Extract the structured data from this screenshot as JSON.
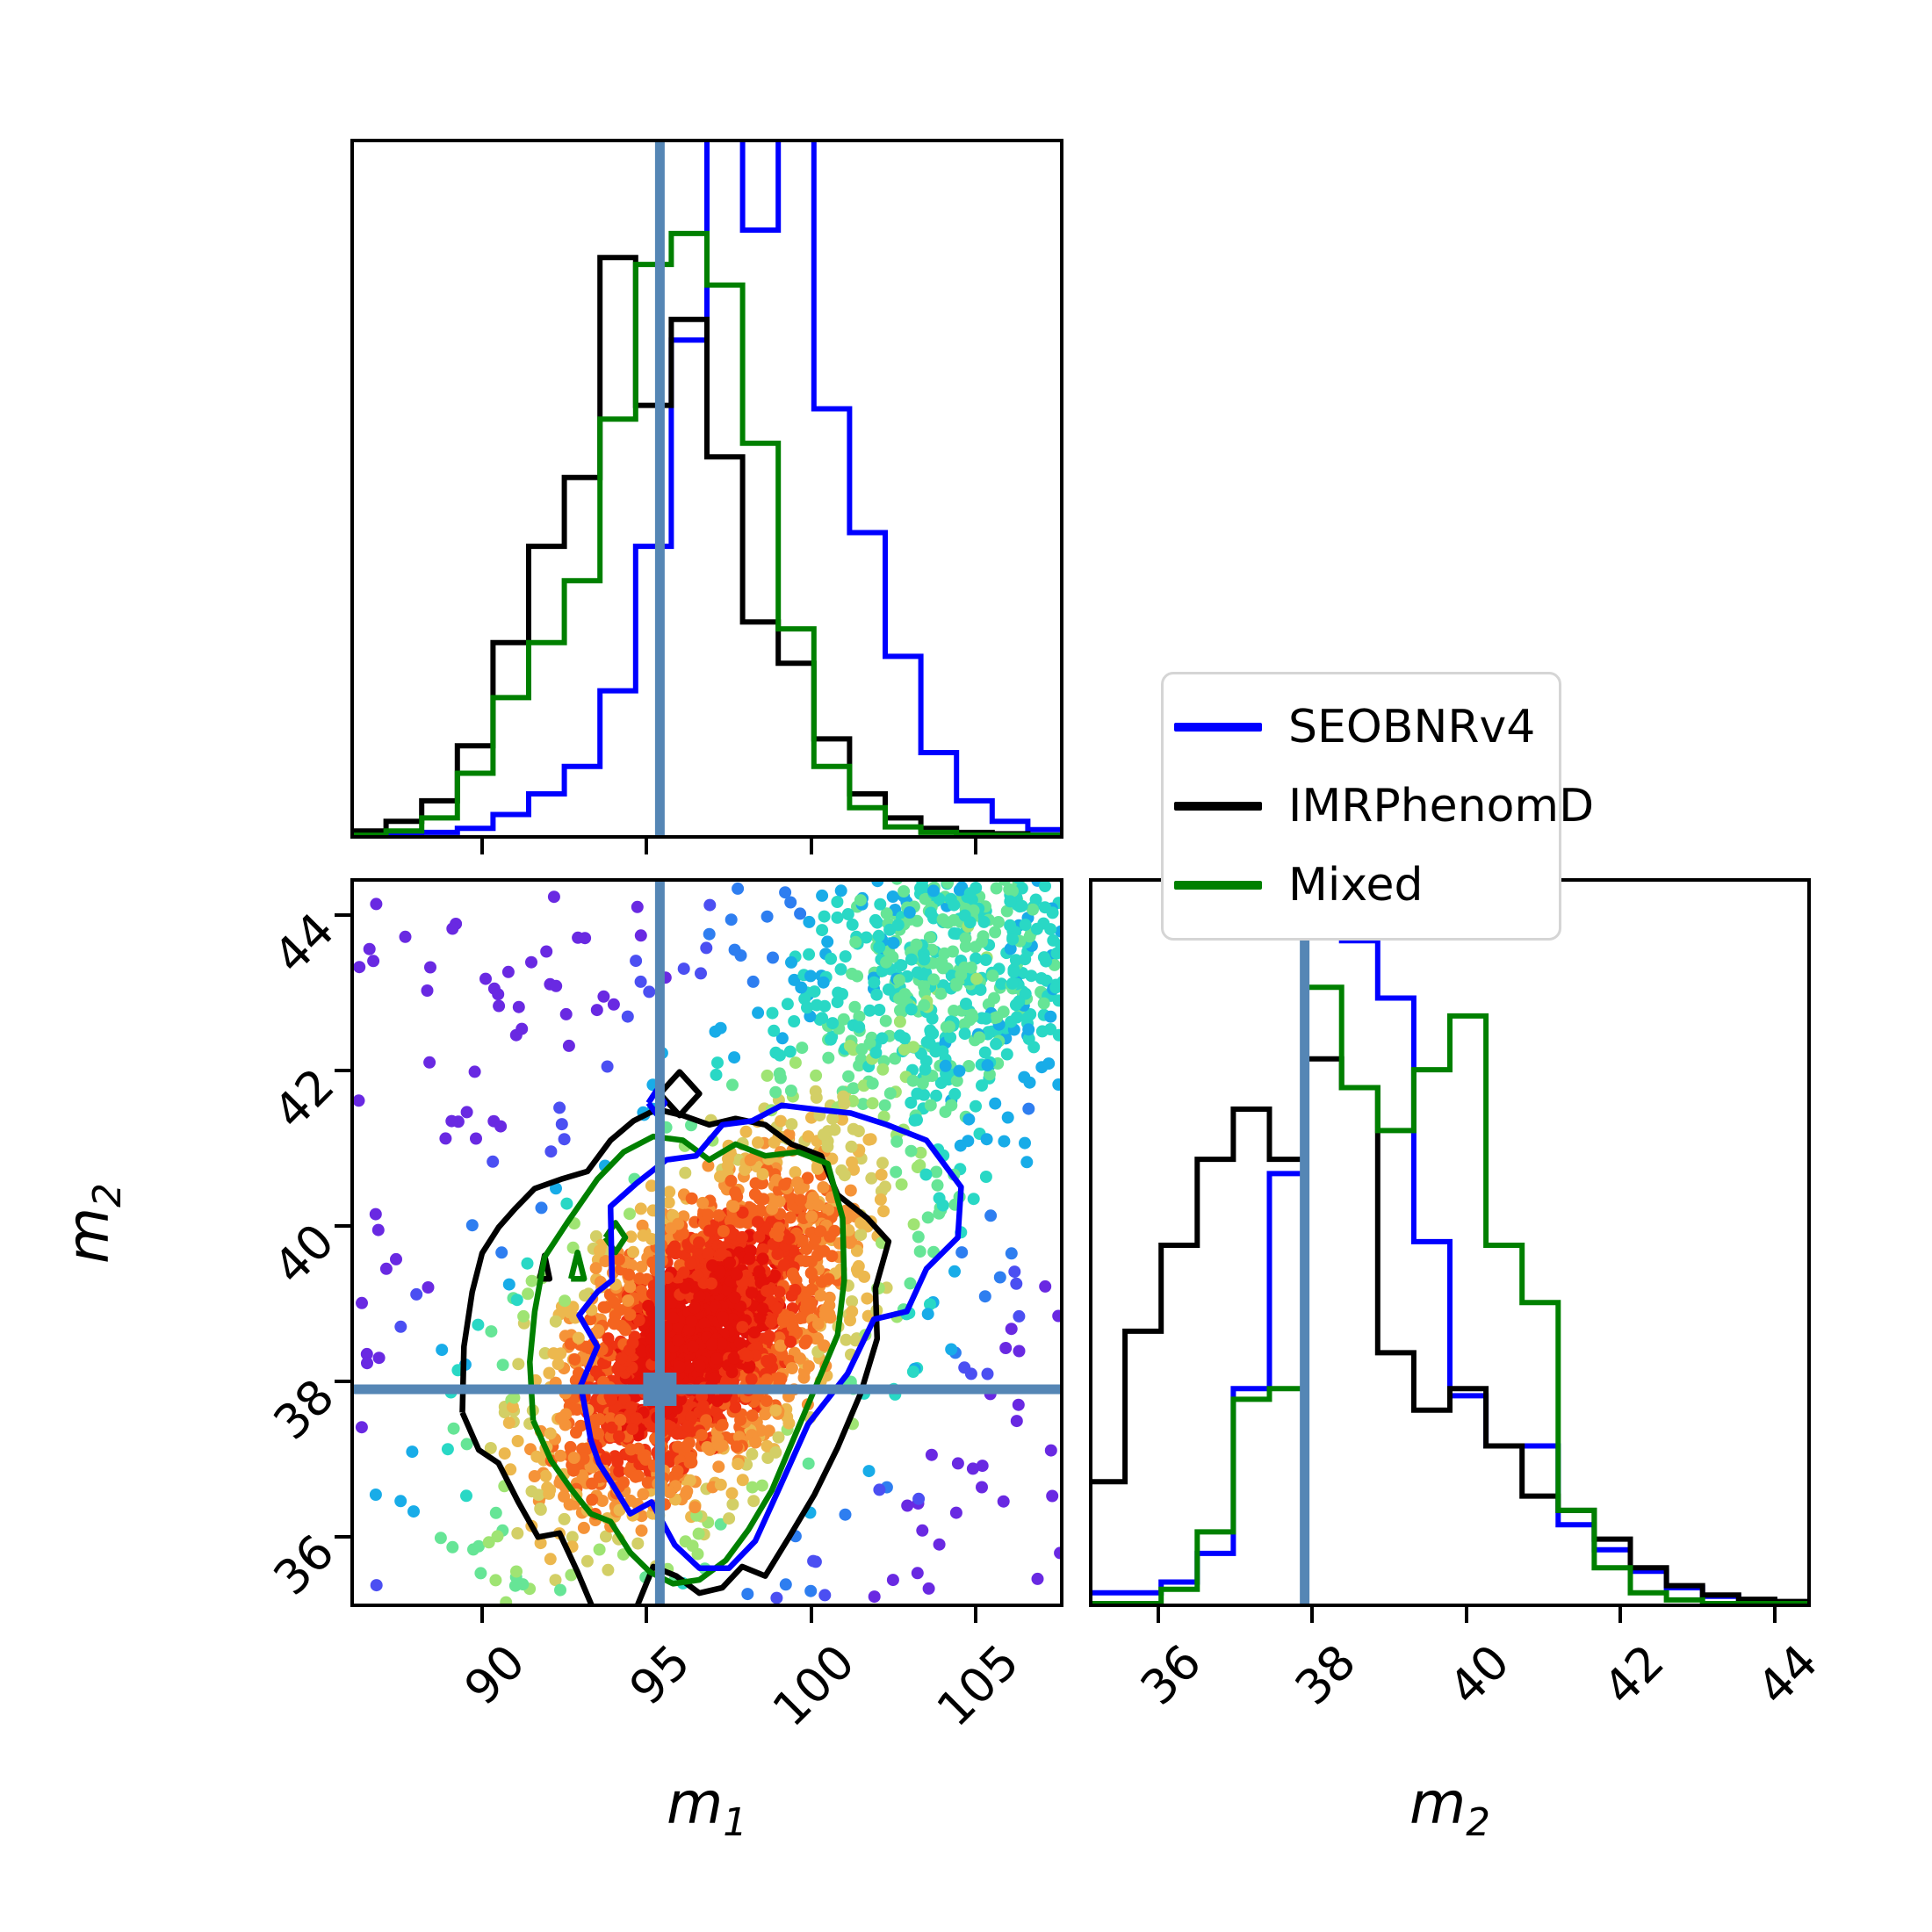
{
  "figure": {
    "background": "#ffffff"
  },
  "legend": {
    "border_color": "#d5d5d5",
    "items": [
      {
        "label": "SEOBNRv4",
        "color": "#0000ff"
      },
      {
        "label": "IMRPhenomD",
        "color": "#000000"
      },
      {
        "label": "Mixed",
        "color": "#008000"
      }
    ]
  },
  "axes": {
    "m1": {
      "label_base": "m",
      "label_sub": "1",
      "range": [
        86.0,
        107.66
      ],
      "ticks": [
        90,
        95,
        100,
        105
      ],
      "tick_rotation_deg": 45
    },
    "m2": {
      "label_base": "m",
      "label_sub": "2",
      "range": [
        35.1,
        44.47
      ],
      "ticks": [
        36,
        38,
        40,
        42,
        44
      ],
      "tick_rotation_deg": 45
    }
  },
  "truth": {
    "m1": 95.4,
    "m2": 37.9,
    "marker": "square",
    "color": "#5586b5"
  },
  "chart_data": [
    {
      "id": "m1_histogram",
      "type": "histogram",
      "panel": "top-left",
      "title": "",
      "xlabel": "m1",
      "xlim": [
        86.0,
        107.66
      ],
      "ylim_normalized": [
        0,
        1
      ],
      "bin_start": 86.0,
      "bin_width": 1.083,
      "n_bins": 20,
      "truth_line_x": 95.4,
      "series": [
        {
          "name": "SEOBNRv4",
          "color": "#0000ff",
          "heights": [
            0,
            0,
            0.004,
            0.01,
            0.03,
            0.06,
            0.1,
            0.21,
            0.42,
            0.72,
            1.05,
            0.88,
            1.03,
            0.62,
            0.44,
            0.26,
            0.12,
            0.05,
            0.02,
            0.008
          ]
        },
        {
          "name": "IMRPhenomD",
          "color": "#000000",
          "heights": [
            0.006,
            0.02,
            0.05,
            0.13,
            0.28,
            0.42,
            0.52,
            0.84,
            0.625,
            0.75,
            0.55,
            0.31,
            0.25,
            0.14,
            0.06,
            0.025,
            0.01,
            0.004,
            0.002,
            0
          ]
        },
        {
          "name": "Mixed",
          "color": "#008000",
          "heights": [
            0,
            0.006,
            0.025,
            0.09,
            0.2,
            0.28,
            0.37,
            0.605,
            0.83,
            0.875,
            0.8,
            0.57,
            0.3,
            0.1,
            0.04,
            0.012,
            0.004,
            0,
            0,
            0
          ]
        }
      ]
    },
    {
      "id": "m1_m2_scatter",
      "type": "scatter",
      "panel": "bottom-left",
      "xlabel": "m1",
      "ylabel": "m2",
      "xlim": [
        86.0,
        107.66
      ],
      "ylim": [
        35.1,
        44.47
      ],
      "truth_point": {
        "x": 95.4,
        "y": 37.9
      },
      "point_cloud": {
        "seed": 20,
        "point_radius_px": 7,
        "clusters": [
          {
            "n": 2300,
            "cx": 96.5,
            "cy": 38.55,
            "sx": 2.25,
            "sy": 1.12,
            "rho": 0.55,
            "weight": 1.0
          },
          {
            "n": 750,
            "cx": 104.2,
            "cy": 43.3,
            "sx": 2.6,
            "sy": 1.25,
            "rho": 0.35,
            "weight": 0.0045
          },
          {
            "n": 300,
            "uniform": true,
            "x0": 86.2,
            "x1": 107.6,
            "y0": 35.2,
            "y1": 44.4
          }
        ],
        "base_density": 3e-08,
        "score_jitter": 0.7,
        "palette_low_to_high_density": [
          "#6929e2",
          "#4b4ff2",
          "#2e7ef0",
          "#18ace8",
          "#29d8c5",
          "#66e596",
          "#9fe473",
          "#d3cf66",
          "#ecb84e",
          "#f59338",
          "#f4641f",
          "#ee3312",
          "#e31209"
        ],
        "score_thresholds": [
          5.0,
          4.5,
          4.05,
          3.65,
          3.3,
          3.0,
          2.7,
          2.4,
          2.1,
          1.75,
          1.35,
          0.9
        ]
      },
      "contours": [
        {
          "name": "IMRPhenomD",
          "color": "#000000",
          "paths": [
            [
              [
                89.4,
                37.6
              ],
              [
                89.45,
                38.45
              ],
              [
                89.7,
                39.15
              ],
              [
                90.0,
                39.65
              ],
              [
                90.5,
                39.98
              ],
              [
                91.0,
                40.22
              ],
              [
                91.6,
                40.48
              ],
              [
                92.4,
                40.6
              ],
              [
                93.2,
                40.7
              ],
              [
                93.9,
                41.1
              ],
              [
                94.6,
                41.35
              ],
              [
                95.3,
                41.5
              ],
              [
                96.1,
                41.42
              ],
              [
                96.9,
                41.3
              ],
              [
                97.7,
                41.38
              ],
              [
                98.6,
                41.3
              ],
              [
                99.4,
                41.05
              ],
              [
                100.3,
                40.9
              ],
              [
                100.8,
                40.4
              ],
              [
                101.7,
                40.1
              ],
              [
                102.35,
                39.8
              ],
              [
                101.95,
                39.2
              ],
              [
                102.0,
                38.55
              ],
              [
                101.5,
                37.85
              ],
              [
                100.8,
                37.15
              ],
              [
                100.1,
                36.55
              ],
              [
                99.3,
                35.98
              ],
              [
                98.6,
                35.5
              ],
              [
                97.9,
                35.62
              ],
              [
                97.3,
                35.35
              ],
              [
                96.6,
                35.28
              ],
              [
                95.9,
                35.5
              ],
              [
                95.2,
                35.62
              ],
              [
                94.65,
                35.05
              ],
              [
                93.4,
                35.05
              ],
              [
                92.9,
                35.55
              ],
              [
                92.35,
                36.05
              ],
              [
                91.7,
                36.0
              ],
              [
                91.1,
                36.45
              ],
              [
                90.5,
                36.95
              ],
              [
                89.9,
                37.12
              ],
              [
                89.4,
                37.6
              ]
            ],
            [
              [
                95.4,
                41.7
              ],
              [
                96.0,
                41.98
              ],
              [
                96.6,
                41.7
              ],
              [
                96.0,
                41.42
              ],
              [
                95.4,
                41.7
              ]
            ],
            [
              [
                91.75,
                39.32
              ],
              [
                91.9,
                39.62
              ],
              [
                92.05,
                39.32
              ],
              [
                91.75,
                39.32
              ]
            ]
          ]
        },
        {
          "name": "Mixed",
          "color": "#008000",
          "paths": [
            [
              [
                91.55,
                37.5
              ],
              [
                91.45,
                38.25
              ],
              [
                91.6,
                38.9
              ],
              [
                91.9,
                39.6
              ],
              [
                92.6,
                40.05
              ],
              [
                93.5,
                40.6
              ],
              [
                94.3,
                40.95
              ],
              [
                95.2,
                41.15
              ],
              [
                96.1,
                41.1
              ],
              [
                96.9,
                40.85
              ],
              [
                97.7,
                41.05
              ],
              [
                98.6,
                40.9
              ],
              [
                99.6,
                40.95
              ],
              [
                100.5,
                40.8
              ],
              [
                100.95,
                40.1
              ],
              [
                101.0,
                39.3
              ],
              [
                100.8,
                38.6
              ],
              [
                100.1,
                37.9
              ],
              [
                99.4,
                37.2
              ],
              [
                98.8,
                36.6
              ],
              [
                98.1,
                36.1
              ],
              [
                97.4,
                35.7
              ],
              [
                96.6,
                35.45
              ],
              [
                95.8,
                35.4
              ],
              [
                95.1,
                35.55
              ],
              [
                94.5,
                35.8
              ],
              [
                93.9,
                36.2
              ],
              [
                93.3,
                36.3
              ],
              [
                92.7,
                36.62
              ],
              [
                92.1,
                36.98
              ],
              [
                91.55,
                37.5
              ]
            ],
            [
              [
                93.75,
                39.85
              ],
              [
                94.05,
                40.04
              ],
              [
                94.35,
                39.85
              ],
              [
                94.05,
                39.66
              ],
              [
                93.75,
                39.85
              ]
            ],
            [
              [
                92.7,
                39.32
              ],
              [
                92.9,
                39.66
              ],
              [
                93.1,
                39.32
              ],
              [
                92.7,
                39.32
              ]
            ]
          ]
        },
        {
          "name": "SEOBNRv4",
          "color": "#0000ff",
          "paths": [
            [
              [
                93.3,
                37.25
              ],
              [
                93.0,
                37.95
              ],
              [
                93.5,
                38.45
              ],
              [
                92.95,
                38.85
              ],
              [
                93.5,
                39.15
              ],
              [
                93.95,
                39.3
              ],
              [
                93.9,
                40.25
              ],
              [
                94.7,
                40.55
              ],
              [
                95.6,
                40.85
              ],
              [
                96.5,
                40.9
              ],
              [
                97.3,
                41.3
              ],
              [
                98.2,
                41.35
              ],
              [
                99.1,
                41.55
              ],
              [
                100.1,
                41.5
              ],
              [
                101.2,
                41.45
              ],
              [
                102.3,
                41.3
              ],
              [
                103.5,
                41.1
              ],
              [
                104.55,
                40.5
              ],
              [
                104.45,
                39.85
              ],
              [
                103.5,
                39.45
              ],
              [
                102.9,
                38.9
              ],
              [
                101.9,
                38.8
              ],
              [
                101.1,
                38.1
              ],
              [
                99.9,
                37.45
              ],
              [
                99.0,
                36.6
              ],
              [
                98.3,
                35.95
              ],
              [
                97.5,
                35.6
              ],
              [
                96.6,
                35.6
              ],
              [
                95.85,
                35.9
              ],
              [
                95.15,
                36.45
              ],
              [
                94.5,
                36.3
              ],
              [
                94.0,
                36.65
              ],
              [
                93.55,
                36.95
              ],
              [
                93.3,
                37.25
              ]
            ],
            [
              [
                95.05,
                41.58
              ],
              [
                95.3,
                41.74
              ],
              [
                95.55,
                41.58
              ],
              [
                95.3,
                41.44
              ],
              [
                95.05,
                41.58
              ]
            ]
          ]
        }
      ]
    },
    {
      "id": "m2_histogram",
      "type": "histogram",
      "panel": "bottom-right",
      "xlabel": "m2",
      "xlim": [
        35.1,
        44.47
      ],
      "ylim_normalized": [
        0,
        1
      ],
      "bin_start": 35.1,
      "bin_width": 0.4685,
      "n_bins": 20,
      "truth_line_x": 37.9,
      "series": [
        {
          "name": "SEOBNRv4",
          "color": "#0000ff",
          "heights": [
            0.015,
            0.015,
            0.03,
            0.07,
            0.3,
            0.6,
            1.04,
            0.925,
            0.845,
            0.505,
            0.29,
            0.22,
            0.22,
            0.11,
            0.075,
            0.045,
            0.022,
            0.01,
            0.005,
            0.002
          ]
        },
        {
          "name": "IMRPhenomD",
          "color": "#000000",
          "heights": [
            0.17,
            0.38,
            0.5,
            0.62,
            0.69,
            0.62,
            0.76,
            0.72,
            0.35,
            0.27,
            0.3,
            0.22,
            0.15,
            0.13,
            0.09,
            0.05,
            0.025,
            0.012,
            0.006,
            0.003
          ]
        },
        {
          "name": "Mixed",
          "color": "#008000",
          "heights": [
            0,
            0,
            0.02,
            0.1,
            0.285,
            0.3,
            0.86,
            0.72,
            0.66,
            0.745,
            0.82,
            0.5,
            0.42,
            0.13,
            0.05,
            0.015,
            0.005,
            0,
            0,
            0
          ]
        }
      ]
    }
  ]
}
